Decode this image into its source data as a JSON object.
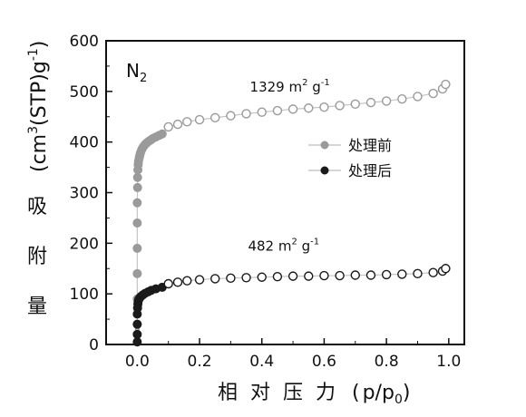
{
  "chart_data": {
    "type": "scatter",
    "panel_label": "N",
    "panel_label_sub": "2",
    "xlabel": {
      "chars": [
        "相",
        "对",
        "压",
        "力"
      ],
      "paren_open": "(",
      "p": "p/p",
      "p_sub": "0",
      "paren_close": ")"
    },
    "ylabel": {
      "chars": [
        "量",
        "附",
        "吸"
      ],
      "unit_pre": "(cm",
      "unit_sup1": "3",
      "unit_mid": "(STP)g",
      "unit_sup2": "-1",
      "unit_post": ")"
    },
    "xlim": [
      -0.1,
      1.05
    ],
    "ylim": [
      0,
      600
    ],
    "x_ticks": [
      "0.0",
      "0.2",
      "0.4",
      "0.6",
      "0.8",
      "1.0"
    ],
    "x_tick_values": [
      0.0,
      0.2,
      0.4,
      0.6,
      0.8,
      1.0
    ],
    "y_ticks": [
      "0",
      "100",
      "200",
      "300",
      "400",
      "500",
      "600"
    ],
    "y_tick_values": [
      0,
      100,
      200,
      300,
      400,
      500,
      600
    ],
    "legend_position": "right-middle",
    "series": [
      {
        "name": "处理前",
        "color": "#9a9a9a",
        "adsorption": {
          "x": [
            0.0,
            0.0,
            0.0,
            0.0,
            0.0,
            0.0,
            0.001,
            0.001,
            0.002,
            0.003,
            0.004,
            0.006,
            0.008,
            0.01,
            0.013,
            0.016,
            0.02,
            0.025,
            0.03,
            0.036,
            0.043,
            0.05,
            0.06,
            0.07,
            0.08
          ],
          "y": [
            40,
            90,
            140,
            190,
            240,
            280,
            310,
            330,
            345,
            355,
            362,
            368,
            373,
            378,
            383,
            387,
            391,
            395,
            398,
            401,
            404,
            407,
            410,
            413,
            416
          ]
        },
        "desorption": {
          "x": [
            0.1,
            0.13,
            0.16,
            0.2,
            0.25,
            0.3,
            0.35,
            0.4,
            0.45,
            0.5,
            0.55,
            0.6,
            0.65,
            0.7,
            0.75,
            0.8,
            0.85,
            0.9,
            0.95,
            0.98,
            0.99
          ],
          "y": [
            430,
            435,
            440,
            444,
            448,
            452,
            456,
            459,
            462,
            465,
            467,
            469,
            472,
            475,
            478,
            481,
            485,
            490,
            496,
            505,
            514
          ]
        },
        "annotation": {
          "value": "1329",
          "unit_m": " m",
          "unit_sup1": "2",
          "unit_g": " g",
          "unit_sup2": "-1",
          "at": [
            0.49,
            500
          ]
        }
      },
      {
        "name": "处理后",
        "color": "#1a1a1a",
        "adsorption": {
          "x": [
            0.0,
            0.0,
            0.0,
            0.0,
            0.001,
            0.002,
            0.003,
            0.005,
            0.008,
            0.012,
            0.018,
            0.025,
            0.035,
            0.045,
            0.06,
            0.08
          ],
          "y": [
            5,
            20,
            40,
            60,
            72,
            80,
            85,
            89,
            92,
            95,
            98,
            101,
            104,
            107,
            110,
            113
          ]
        },
        "desorption": {
          "x": [
            0.1,
            0.13,
            0.16,
            0.2,
            0.25,
            0.3,
            0.35,
            0.4,
            0.45,
            0.5,
            0.55,
            0.6,
            0.65,
            0.7,
            0.75,
            0.8,
            0.85,
            0.9,
            0.95,
            0.98,
            0.99
          ],
          "y": [
            120,
            123,
            126,
            128,
            130,
            131,
            132,
            133,
            134,
            135,
            135,
            136,
            136,
            137,
            137,
            138,
            139,
            140,
            142,
            145,
            150
          ]
        },
        "annotation": {
          "value": "482",
          "unit_m": " m",
          "unit_sup1": "2",
          "unit_g": " g",
          "unit_sup2": "-1",
          "at": [
            0.47,
            185
          ]
        }
      }
    ]
  }
}
